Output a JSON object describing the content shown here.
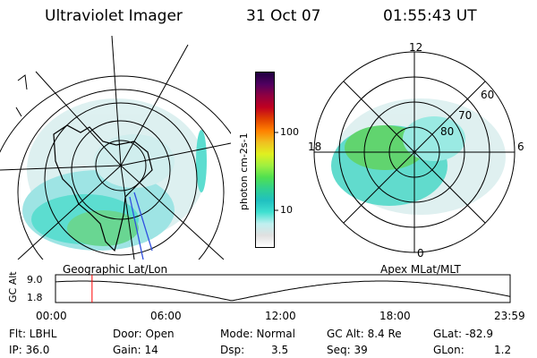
{
  "header": {
    "title": "Ultraviolet Imager",
    "date": "31 Oct 07",
    "time": "01:55:43 UT"
  },
  "colorbar": {
    "label": "photon cm-2s-1",
    "ticks": [
      "100",
      "10"
    ],
    "colors": [
      "#ffffff",
      "#e0e0e0",
      "#c0f0f0",
      "#40e0d0",
      "#20c0c0",
      "#30d090",
      "#50e050",
      "#a0f040",
      "#e0f020",
      "#f0c020",
      "#ff8000",
      "#e04000",
      "#c00020",
      "#900040",
      "#500060",
      "#200040"
    ]
  },
  "left_map": {
    "projection_label": "Geographic Lat/Lon"
  },
  "right_map": {
    "projection_label": "Apex MLat/MLT",
    "mlt_labels": {
      "top": "12",
      "left": "18",
      "right": "6",
      "bottom": "0"
    },
    "lat_labels": [
      "60",
      "70",
      "80"
    ]
  },
  "altitude_plot": {
    "y_label": "GC Alt",
    "y_ticks": [
      "9.0",
      "1.8"
    ],
    "x_ticks": [
      "00:00",
      "06:00",
      "12:00",
      "18:00",
      "23:59"
    ],
    "current_time_marker_hours": 1.93,
    "colors": {
      "marker": "#ff0000"
    }
  },
  "status": {
    "filter": "Flt: LBHL",
    "ip": "IP: 36.0",
    "door": "Door: Open",
    "gain": "Gain: 14",
    "mode": "Mode: Normal",
    "dsp": "Dsp:",
    "dsp_value": "3.5",
    "gc_alt": "GC Alt: 8.4 Re",
    "seq": "Seq: 39",
    "glat": "GLat: -82.9",
    "glon": "GLon:",
    "glon_value": "1.2"
  }
}
